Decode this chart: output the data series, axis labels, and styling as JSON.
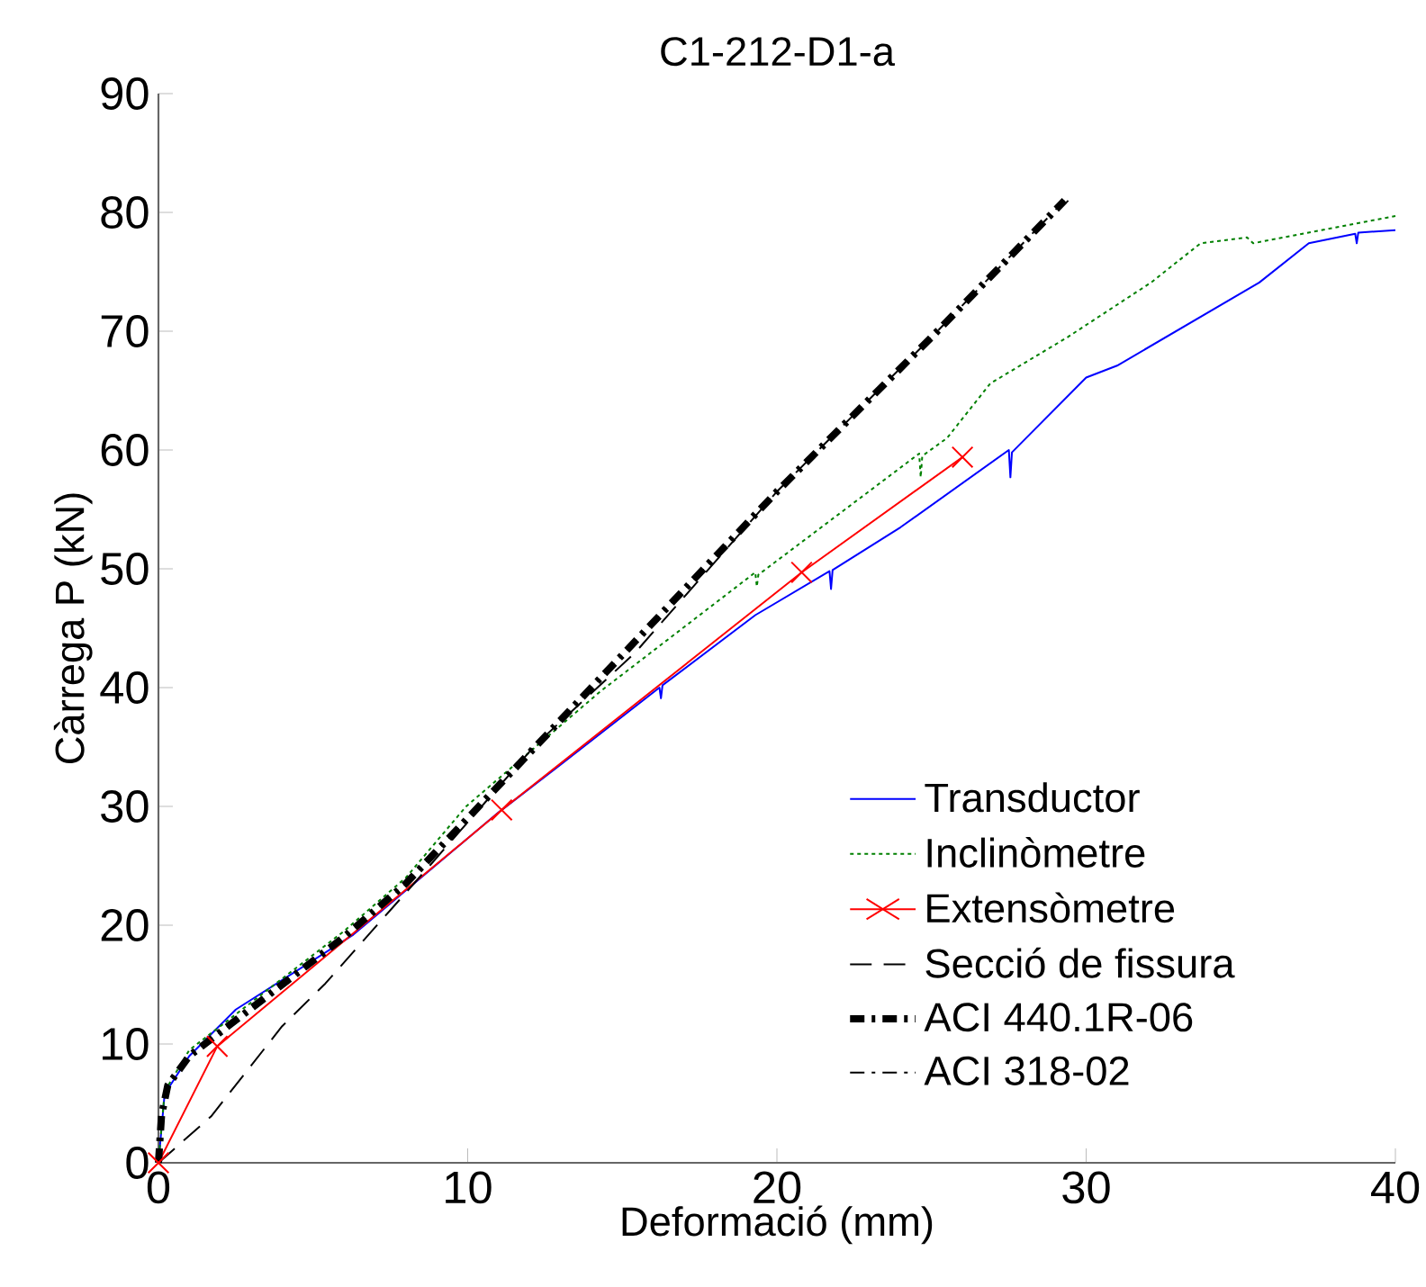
{
  "chart_data": {
    "type": "line",
    "title": "C1-212-D1-a",
    "xlabel": "Deformació (mm)",
    "ylabel": "Càrrega P (kN)",
    "xlim": [
      0,
      40
    ],
    "ylim": [
      0,
      90
    ],
    "xticks": [
      0,
      10,
      20,
      30,
      40
    ],
    "yticks": [
      0,
      10,
      20,
      30,
      40,
      50,
      60,
      70,
      80,
      90
    ],
    "grid": false,
    "legend": "bottom right",
    "series": [
      {
        "name": "Transductor",
        "color": "#0000ff",
        "line_style": "solid",
        "marker": "none",
        "x": [
          0,
          0.2,
          1,
          2.5,
          6.3,
          11,
          13,
          16.2,
          16.25,
          16.3,
          19.3,
          21.7,
          21.75,
          21.8,
          24,
          27.5,
          27.55,
          27.6,
          30,
          31,
          35.6,
          37.2,
          38.7,
          38.75,
          38.8,
          40
        ],
        "values": [
          0,
          5.8,
          9,
          12.9,
          19.2,
          29.5,
          33.5,
          40,
          39.1,
          40.2,
          46.1,
          49.8,
          48.3,
          49.9,
          53.5,
          60,
          57.7,
          59.8,
          66.1,
          67.1,
          74.1,
          77.4,
          78.2,
          77.4,
          78.3,
          78.5
        ]
      },
      {
        "name": "Inclinòmetre",
        "color": "#008000",
        "line_style": "dotted",
        "marker": "none",
        "x": [
          0,
          0.2,
          1,
          2,
          4,
          6,
          8,
          9.95,
          14.3,
          19.3,
          19.35,
          19.4,
          24.6,
          24.65,
          24.7,
          25.5,
          26.9,
          29.4,
          32.1,
          33.7,
          35.2,
          35.4,
          40
        ],
        "values": [
          0,
          6,
          9.5,
          11.5,
          15.5,
          19.5,
          24,
          30,
          39.7,
          49.7,
          48.5,
          49.5,
          59.7,
          57.7,
          59.5,
          61,
          65.6,
          69.5,
          74.1,
          77.4,
          77.9,
          77.4,
          79.7
        ]
      },
      {
        "name": "Extensòmetre",
        "color": "#ff0000",
        "line_style": "solid",
        "marker": "cross",
        "x": [
          0,
          1.9,
          11.1,
          20.8,
          26.0
        ],
        "values": [
          0,
          9.8,
          29.7,
          49.7,
          59.4
        ]
      },
      {
        "name": "Secció de fissura",
        "color": "#000000",
        "line_style": "dashed",
        "marker": "none",
        "x": [
          0,
          1.7,
          4,
          5.4,
          8.6,
          12.2,
          15.4,
          20,
          25,
          29.3
        ],
        "values": [
          0,
          3.9,
          11.5,
          15.1,
          24.5,
          35.2,
          42.9,
          56.5,
          69.5,
          81
        ]
      },
      {
        "name": "ACI 440.1R-06",
        "color": "#000000",
        "line_style": "dashdot",
        "marker": "none",
        "x": [
          0,
          0.1,
          0.3,
          1,
          2,
          4,
          6,
          8,
          10,
          14,
          20,
          25,
          29.3
        ],
        "values": [
          0,
          4,
          6.5,
          9,
          11,
          15,
          19,
          23.5,
          29,
          40,
          56.5,
          69.5,
          81
        ]
      },
      {
        "name": "ACI 318-02",
        "color": "#000000",
        "line_style": "dashdot",
        "marker": "none",
        "x": [
          0,
          0.1,
          0.3,
          1,
          2,
          4,
          6,
          8,
          10,
          14,
          20,
          25,
          29.5
        ],
        "values": [
          0,
          4,
          6.5,
          9,
          11,
          15,
          19,
          23.5,
          29,
          40,
          56.5,
          69.5,
          81.2
        ]
      }
    ]
  }
}
